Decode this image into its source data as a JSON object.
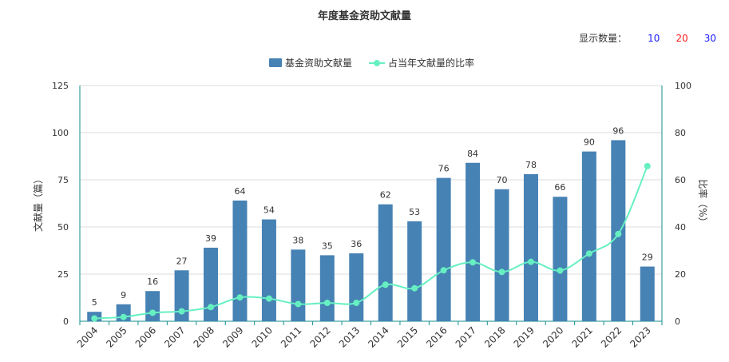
{
  "title": "年度基金资助文献量",
  "display_count": {
    "label": "显示数量：",
    "options": [
      {
        "label": "10",
        "color": "#1a1aff"
      },
      {
        "label": "20",
        "color": "#ff2020"
      },
      {
        "label": "30",
        "color": "#1a1aff"
      }
    ]
  },
  "colors": {
    "bar": "#4682b4",
    "line": "#66f0c2",
    "axis": "#138e8e",
    "grid": "#dcdcdc"
  },
  "chart_data": {
    "type": "bar",
    "categories": [
      "2004",
      "2005",
      "2006",
      "2007",
      "2008",
      "2009",
      "2010",
      "2011",
      "2012",
      "2013",
      "2014",
      "2015",
      "2016",
      "2017",
      "2018",
      "2019",
      "2020",
      "2021",
      "2022",
      "2023"
    ],
    "series": [
      {
        "name": "基金资助文献量",
        "type": "bar",
        "axis": "left",
        "values": [
          5,
          9,
          16,
          27,
          39,
          64,
          54,
          38,
          35,
          36,
          62,
          53,
          76,
          84,
          70,
          78,
          66,
          90,
          96,
          29
        ]
      },
      {
        "name": "占当年文献量的比率",
        "type": "line",
        "axis": "right",
        "values": [
          1.2,
          1.8,
          3.6,
          4.2,
          6.0,
          10.1,
          9.6,
          7.3,
          7.8,
          7.8,
          15.5,
          14.0,
          21.6,
          25.0,
          20.9,
          25.2,
          21.5,
          28.7,
          37.0,
          65.8
        ]
      }
    ],
    "ylabel": "文献量（篇）",
    "y2label": "比率（%）",
    "ylim": [
      0,
      125
    ],
    "y_ticks": [
      "0",
      "25",
      "50",
      "75",
      "100",
      "125"
    ],
    "y2lim": [
      0,
      100
    ],
    "y2_ticks": [
      "0",
      "20",
      "40",
      "60",
      "80",
      "100"
    ],
    "grid": true,
    "legend_position": "top-center"
  }
}
